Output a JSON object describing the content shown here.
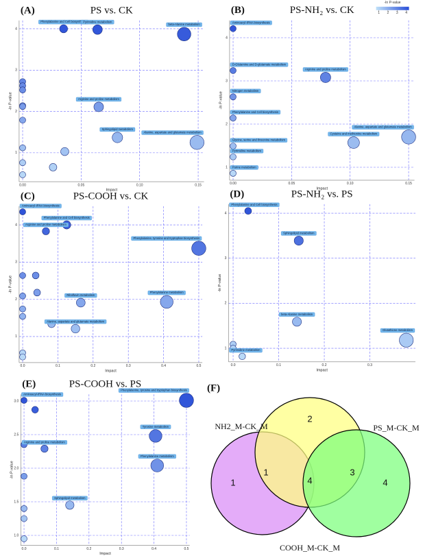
{
  "chart_data": [
    {
      "type": "scatter",
      "panel": "(A)",
      "title": "PS vs. CK",
      "xlabel": "Impact",
      "ylabel": "-ln P-value",
      "x": [
        0.035,
        0.064,
        0.138,
        0,
        0,
        0,
        0,
        0,
        0,
        0,
        0,
        0,
        0.065,
        0.081,
        0.149,
        0.036,
        0.026
      ],
      "y": [
        4.0,
        3.98,
        3.87,
        2.72,
        2.62,
        2.52,
        2.14,
        2.12,
        1.79,
        1.12,
        0.76,
        0.47,
        2.11,
        1.37,
        1.25,
        1.03,
        0.65
      ],
      "labels": [
        "Phenylalanine and Cell biosynthesis",
        "Pyrimidine metabolism",
        "beta-Alanine metabolism",
        null,
        null,
        null,
        null,
        null,
        null,
        null,
        null,
        null,
        "Arginine and proline metabolism",
        "Sphingolipid metabolism",
        "Alanine, aspartate and glutamate metabolism",
        null,
        null
      ],
      "xlim": [
        -0.003,
        0.155
      ],
      "ylim": [
        0.3,
        4.2
      ],
      "xticks": [
        {
          "value": 0,
          "label": "0.00"
        },
        0.05,
        {
          "value": 0.1,
          "label": "0.10"
        },
        0.15
      ],
      "yticks": [
        1,
        2,
        3,
        4
      ],
      "grid": true
    },
    {
      "type": "scatter",
      "panel": "(B)",
      "title": "PS-NH₂ vs. CK",
      "xlabel": "Impact",
      "ylabel": "-ln P-value",
      "x": [
        0,
        0,
        0.079,
        0,
        0,
        0.15,
        0.103,
        0,
        0,
        0
      ],
      "y": [
        4.21,
        3.24,
        3.08,
        2.63,
        2.14,
        1.7,
        1.57,
        1.49,
        1.24,
        0.86
      ],
      "labels": [
        "Aminoacyl-tRNA biosynthesis",
        "D-Glutamine and D-glutamate metabolism",
        "Arginine and proline metabolism",
        "Nitrogen metabolism",
        "Phenylalanine and Cell biosynthesis",
        "Alanine, aspartate and glutamate metabolism",
        "Cysteine and methionine metabolism",
        "Glycine, serine and threonine metabolism",
        "Pyrimidine metabolism",
        "Purine metabolism"
      ],
      "xlim": [
        -0.003,
        0.155
      ],
      "ylim": [
        0.7,
        4.4
      ],
      "xticks": [
        {
          "value": 0,
          "label": "0.00"
        },
        0.05,
        {
          "value": 0.1,
          "label": "0.10"
        },
        0.15
      ],
      "yticks": [
        1,
        2,
        3,
        4
      ],
      "grid": true,
      "colorbar": {
        "title": "-ln P-value",
        "ticks": [
          1,
          2,
          3,
          4
        ]
      }
    },
    {
      "type": "scatter",
      "panel": "(C)",
      "title": "PS-COOH vs. CK",
      "xlabel": "Impact",
      "ylabel": "-ln P-value",
      "x": [
        0,
        0.125,
        0.066,
        0.5,
        0,
        0,
        0,
        0,
        0,
        0,
        0.037,
        0.041,
        0.165,
        0.409,
        0.082,
        0.15
      ],
      "y": [
        4.35,
        4.0,
        3.83,
        3.37,
        2.64,
        2.09,
        1.74,
        1.54,
        0.56,
        0.45,
        2.64,
        2.18,
        1.91,
        1.93,
        1.34,
        1.21
      ],
      "labels": [
        "Aminoacyl-tRNA biosynthesis",
        "Phenylalanine and Cell biosynthesis",
        "Arginine and proline metabolism",
        "Phenylalanine, tyrosine and tryptophan biosynthesis",
        null,
        null,
        null,
        null,
        null,
        null,
        null,
        null,
        "Riboflavin metabolism",
        "Phenylalanine metabolism",
        null,
        "Alanine, aspartate and glutamate metabolism"
      ],
      "xlim": [
        -0.01,
        0.51
      ],
      "ylim": [
        0.3,
        4.5
      ],
      "xticks": [
        {
          "value": 0,
          "label": "0.0"
        },
        0.1,
        0.2,
        0.3,
        0.4,
        0.5
      ],
      "yticks": [
        1,
        2,
        3,
        4
      ],
      "grid": true
    },
    {
      "type": "scatter",
      "panel": "(D)",
      "title": "PS-NH₂ vs. PS",
      "xlabel": "Impact",
      "ylabel": "-ln P-value",
      "x": [
        0.033,
        0.144,
        0.14,
        0.38,
        0,
        0,
        0.02
      ],
      "y": [
        4.05,
        3.39,
        1.59,
        1.18,
        1.09,
        1.0,
        0.82
      ],
      "labels": [
        "Phenylalanine and Cell biosynthesis",
        "Sphingolipid metabolism",
        "beta-Alanine metabolism",
        "Glutathione metabolism",
        null,
        null,
        "Pyrimidine metabolism"
      ],
      "xlim": [
        -0.01,
        0.4
      ],
      "ylim": [
        0.7,
        4.2
      ],
      "xticks": [
        {
          "value": 0,
          "label": "0.0"
        },
        0.1,
        0.2,
        0.3
      ],
      "yticks": [
        1,
        2,
        3,
        4
      ],
      "grid": true
    },
    {
      "type": "scatter",
      "panel": "(E)",
      "title": "PS-COOH vs. PS",
      "xlabel": "Impact",
      "ylabel": "-ln P-value",
      "x": [
        0,
        0.5,
        0.034,
        0.405,
        0,
        0.063,
        0.41,
        0,
        0.141,
        0,
        0,
        0
      ],
      "y": [
        3.01,
        3.01,
        2.87,
        2.48,
        2.35,
        2.29,
        2.04,
        1.88,
        1.45,
        1.4,
        1.25,
        0.95
      ],
      "labels": [
        "Aminoacyl-tRNA biosynthesis",
        "Phenylalanine, tyrosine and tryptophan biosynthesis",
        null,
        "Tyrosine metabolism",
        null,
        "Arginine and proline metabolism",
        "Phenylalanine metabolism",
        null,
        "Sphingolipid metabolism",
        null,
        null,
        null
      ],
      "xlim": [
        -0.01,
        0.51
      ],
      "ylim": [
        0.85,
        3.1
      ],
      "xticks": [
        {
          "value": 0,
          "label": "0.0"
        },
        0.1,
        0.2,
        0.3,
        0.4,
        0.5
      ],
      "yticks": [
        {
          "value": 1,
          "label": "1.0"
        },
        {
          "value": 1.5,
          "label": "1.5"
        },
        {
          "value": 2,
          "label": "2.0"
        },
        {
          "value": 2.5,
          "label": "2.5"
        },
        {
          "value": 3,
          "label": "3.0"
        }
      ],
      "grid": true
    },
    {
      "type": "venn",
      "panel": "(F)",
      "sets": [
        {
          "name": "NH2_M-CK_M",
          "color": "#d98cf6"
        },
        {
          "name": "PS_M-CK_M",
          "color": "#ffff80"
        },
        {
          "name": "COOH_M-CK_M",
          "color": "#7cff7c"
        }
      ],
      "regions": [
        {
          "sets": [
            0
          ],
          "value": 1
        },
        {
          "sets": [
            0,
            1
          ],
          "value": 1
        },
        {
          "sets": [
            0,
            1,
            2
          ],
          "value": 4
        },
        {
          "sets": [
            1,
            2
          ],
          "value": 3
        },
        {
          "sets": [
            2
          ],
          "value": 4
        },
        {
          "sets": [
            1
          ],
          "value": 2
        }
      ]
    }
  ]
}
